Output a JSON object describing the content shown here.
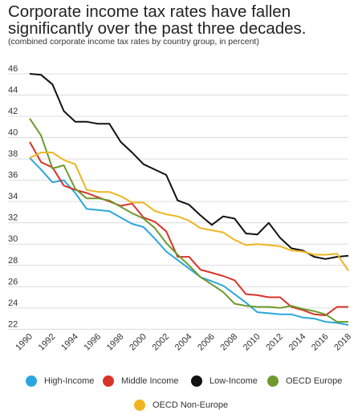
{
  "header": {
    "title": "Corporate income tax rates have fallen significantly over the past three decades.",
    "subtitle": "(combined corporate income tax rates by country group, in percent)"
  },
  "chart_data": {
    "type": "line",
    "x": [
      1990,
      1991,
      1992,
      1993,
      1994,
      1995,
      1996,
      1997,
      1998,
      1999,
      2000,
      2001,
      2002,
      2003,
      2004,
      2005,
      2006,
      2007,
      2008,
      2009,
      2010,
      2011,
      2012,
      2013,
      2014,
      2015,
      2016,
      2017,
      2018
    ],
    "xticks": [
      1990,
      1992,
      1994,
      1996,
      1998,
      2000,
      2002,
      2004,
      2006,
      2008,
      2010,
      2012,
      2014,
      2016,
      2018
    ],
    "yticks": [
      22,
      24,
      26,
      28,
      30,
      32,
      34,
      36,
      38,
      40,
      42,
      44,
      46
    ],
    "ylim": [
      21.8,
      46.6
    ],
    "xlim": [
      1990,
      2018
    ],
    "grid": true,
    "series": [
      {
        "name": "High-Income",
        "color": "#2aa7df",
        "values": [
          38.1,
          37.0,
          35.8,
          36.0,
          34.8,
          33.3,
          33.2,
          33.1,
          32.5,
          31.9,
          31.6,
          30.5,
          29.3,
          28.5,
          27.7,
          26.9,
          26.5,
          26.1,
          25.3,
          24.5,
          23.6,
          23.5,
          23.4,
          23.4,
          23.1,
          23.0,
          22.7,
          22.6,
          22.4
        ]
      },
      {
        "name": "Middle Income",
        "color": "#d8342a",
        "values": [
          39.6,
          37.7,
          37.2,
          35.5,
          35.1,
          34.8,
          34.4,
          34.0,
          33.6,
          33.8,
          32.5,
          32.1,
          31.2,
          28.8,
          28.8,
          27.6,
          27.3,
          27.0,
          26.6,
          25.3,
          25.2,
          25.0,
          25.0,
          24.1,
          23.8,
          23.4,
          23.3,
          24.1,
          24.1
        ]
      },
      {
        "name": "Low-Income",
        "color": "#111111",
        "values": [
          46.0,
          45.9,
          45.0,
          42.5,
          41.5,
          41.5,
          41.3,
          41.3,
          39.6,
          38.6,
          37.5,
          37.0,
          36.5,
          34.1,
          33.7,
          32.7,
          31.8,
          32.6,
          32.4,
          31.0,
          30.9,
          32.0,
          30.6,
          29.6,
          29.4,
          28.8,
          28.6,
          28.8,
          28.9
        ]
      },
      {
        "name": "OECD Europe",
        "color": "#6e9a2c",
        "values": [
          41.8,
          40.2,
          37.1,
          37.4,
          35.2,
          34.3,
          34.3,
          34.1,
          33.5,
          32.9,
          32.4,
          31.5,
          30.1,
          29.0,
          28.0,
          26.9,
          26.2,
          25.5,
          24.4,
          24.2,
          24.1,
          24.1,
          24.0,
          24.2,
          23.9,
          23.7,
          23.4,
          22.7,
          22.7
        ]
      },
      {
        "name": "OECD Non-Europe",
        "color": "#efb520",
        "values": [
          38.1,
          38.6,
          38.6,
          37.9,
          37.5,
          35.1,
          34.9,
          34.9,
          34.5,
          33.9,
          33.9,
          33.1,
          32.8,
          32.6,
          32.2,
          31.5,
          31.3,
          31.1,
          30.4,
          29.9,
          30.0,
          29.9,
          29.8,
          29.4,
          29.3,
          29.0,
          29.0,
          29.1,
          27.5
        ]
      }
    ]
  }
}
